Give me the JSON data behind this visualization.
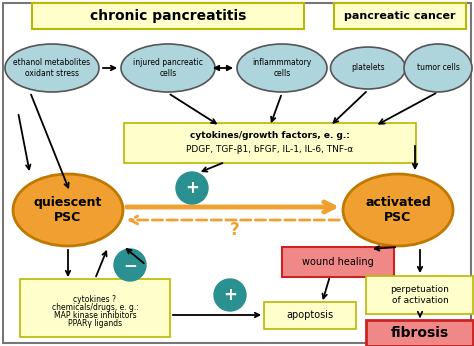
{
  "bg": "white",
  "blue": "#aed4dc",
  "orange": "#f0a030",
  "orange_edge": "#c07800",
  "teal": "#2a9090",
  "yellow_box": "#ffffcc",
  "yellow_edge": "#b8b800",
  "red_box": "#f08888",
  "red_edge": "#cc2222",
  "dark": "#333333",
  "chronic_text": "chronic pancreatitis",
  "cancer_text": "pancreatic cancer",
  "ethanol_text": "ethanol metabolites\noxidant stress",
  "injured_text": "injured pancreatic\ncells",
  "inflam_text": "inflammmatory\ncells",
  "platelets_text": "platelets",
  "tumor_text": "tumor cells",
  "cytokines_line1": "cytokines/growth factors, e. g.:",
  "cytokines_line2": "PDGF, TGF-β1, bFGF, IL-1, IL-6, TNF-α",
  "quiescent_text": "quiescent\nPSC",
  "activated_text": "activated\nPSC",
  "wound_text": "wound healing",
  "perp_text": "perpetuation\nof activation",
  "apoptosis_text": "apoptosis",
  "fibrosis_text": "fibrosis",
  "drugs_line1": "cytokines ?",
  "drugs_line2": "chemicals/drugs, e. g.:",
  "drugs_line3": "MAP kinase inhibitors",
  "drugs_line4": "PPARγ ligands",
  "question_mark": "?"
}
